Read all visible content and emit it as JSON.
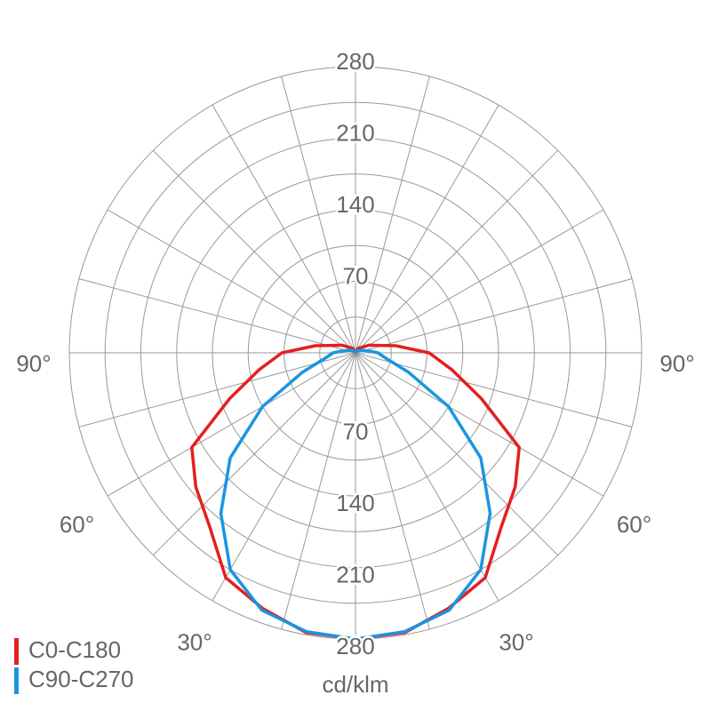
{
  "chart_data": {
    "type": "polar",
    "unit_label": "cd/klm",
    "angles": [
      0,
      10,
      20,
      30,
      40,
      50,
      60,
      70,
      80,
      90,
      100,
      120,
      150,
      180
    ],
    "series": [
      {
        "name": "C0-C180",
        "color": "#e41f1f",
        "values": [
          280,
          278,
          266,
          254,
          222,
          204,
          185,
          131,
          96,
          72,
          40,
          15,
          5,
          0
        ]
      },
      {
        "name": "C90-C270",
        "color": "#1b95e0",
        "values": [
          280,
          277,
          268,
          245,
          205,
          160,
          105,
          55,
          30,
          22,
          12,
          5,
          2,
          0
        ]
      }
    ],
    "rlim": [
      0,
      280
    ],
    "rticks": [
      70,
      140,
      210,
      280
    ],
    "rgrid": [
      35,
      70,
      105,
      140,
      175,
      210,
      245,
      280
    ],
    "angle_grid_step": 15,
    "angle_ticks": [
      {
        "value": 90,
        "label": "90°"
      },
      {
        "value": 60,
        "label": "60°"
      },
      {
        "value": 30,
        "label": "30°"
      }
    ],
    "legend": "bottom-left"
  }
}
